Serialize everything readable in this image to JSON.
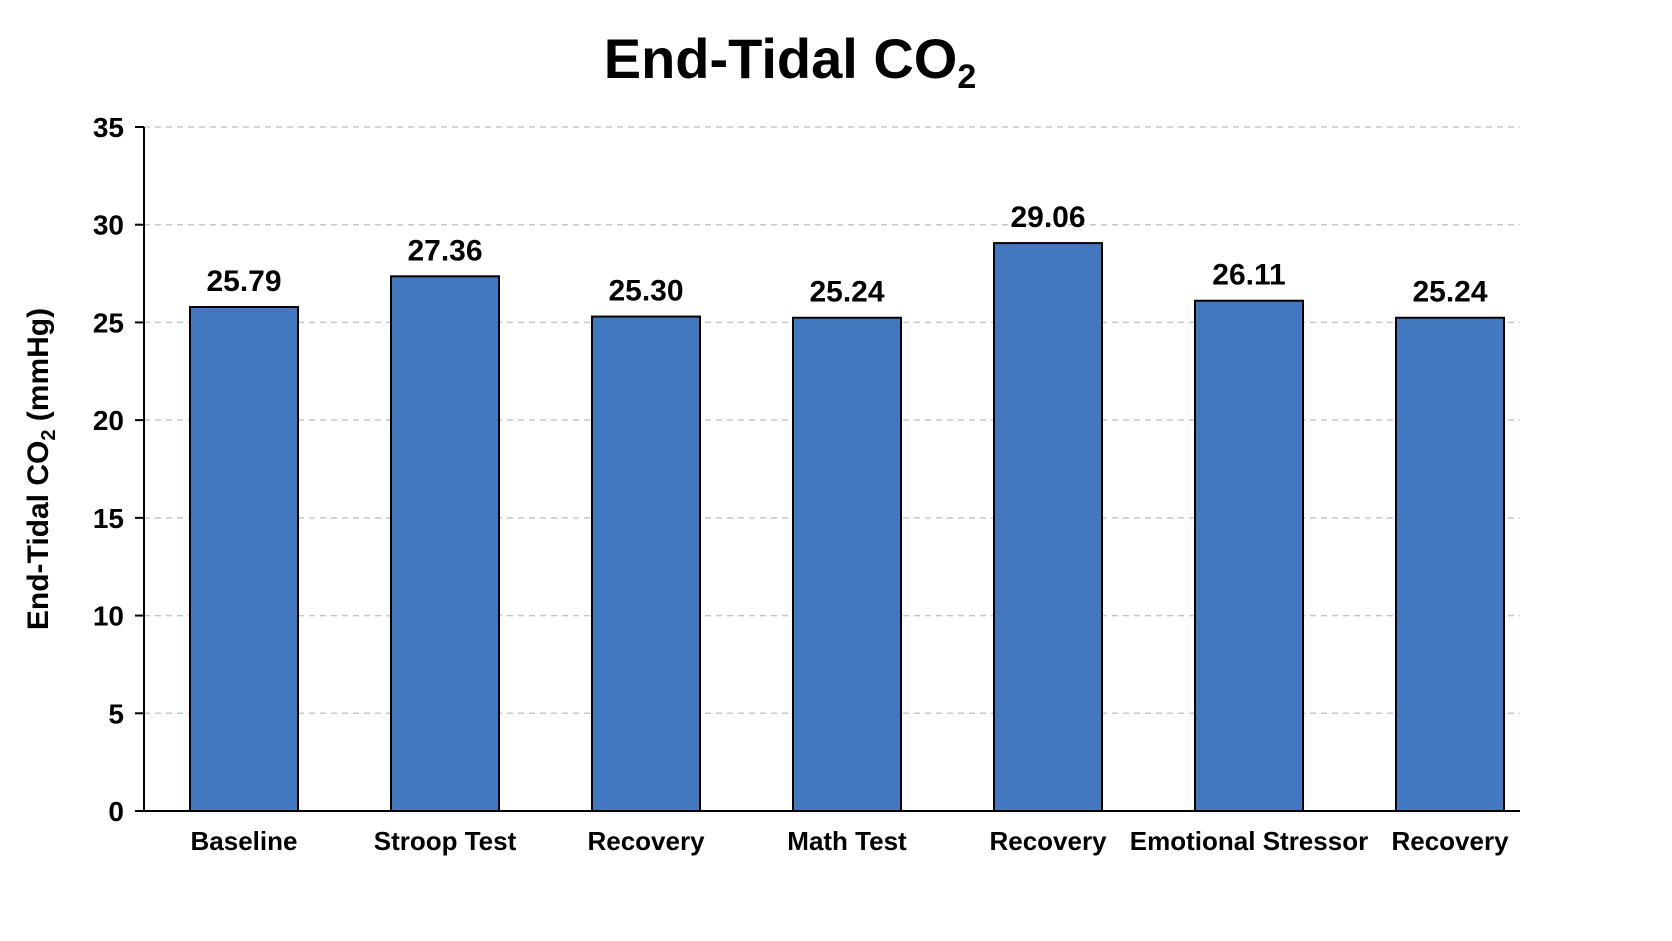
{
  "chart_data": {
    "type": "bar",
    "title": "End-Tidal CO",
    "title_subscript": "2",
    "ylabel": "End-Tidal CO",
    "ylabel_subscript": "2",
    "ylabel_unit": " (mmHg)",
    "xlabel": "",
    "categories": [
      "Baseline",
      "Stroop Test",
      "Recovery",
      "Math Test",
      "Recovery",
      "Emotional Stressor",
      "Recovery"
    ],
    "values": [
      25.79,
      27.36,
      25.3,
      25.24,
      29.06,
      26.11,
      25.24
    ],
    "value_labels": [
      "25.79",
      "27.36",
      "25.30",
      "25.24",
      "29.06",
      "26.11",
      "25.24"
    ],
    "ylim": [
      0,
      35
    ],
    "yticks": [
      0,
      5,
      10,
      15,
      20,
      25,
      30,
      35
    ],
    "grid": "horizontal dashed",
    "bar_color": "#4178c0"
  }
}
